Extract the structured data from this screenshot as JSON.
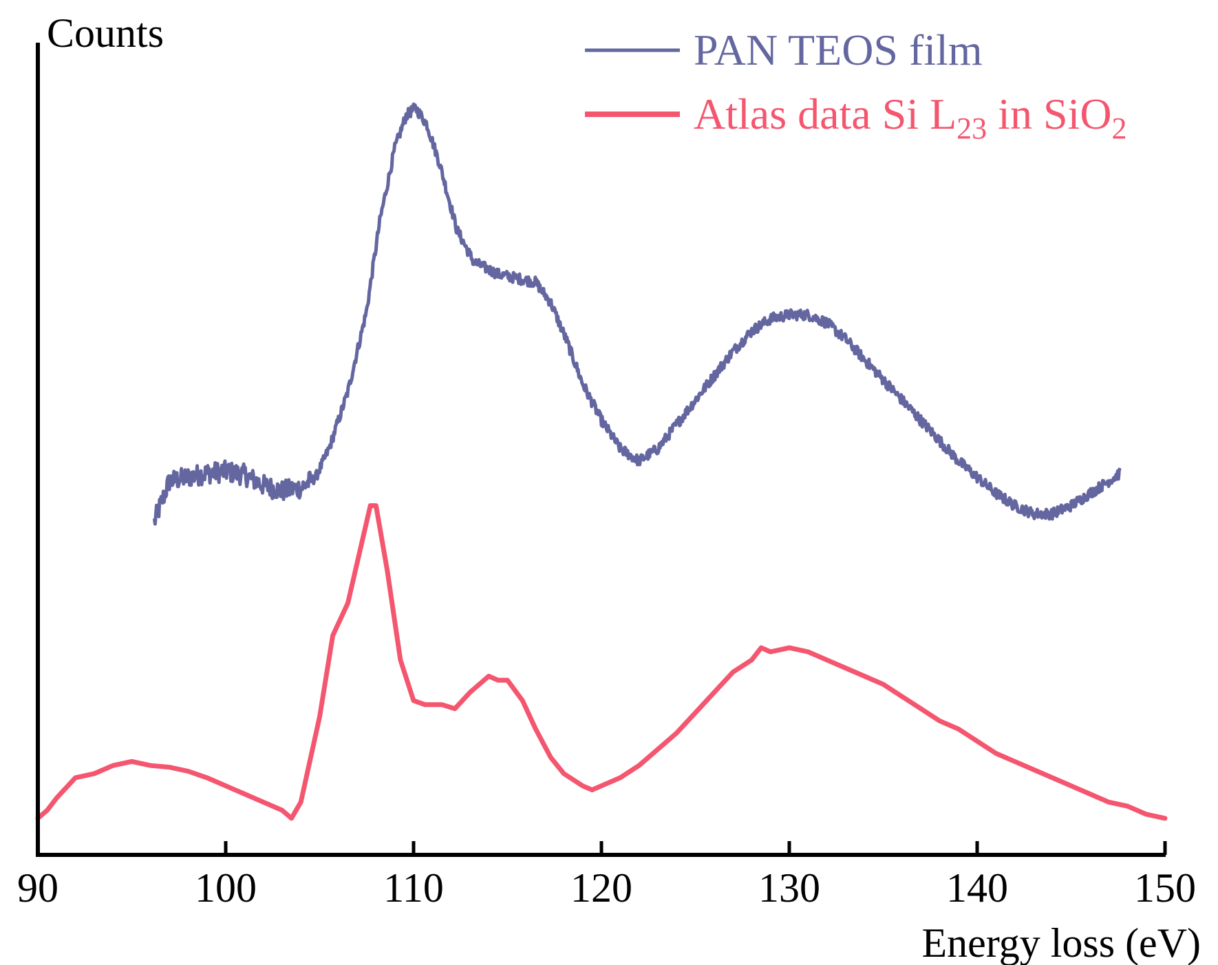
{
  "chart_data": {
    "type": "line",
    "title": "",
    "ylabel": "Counts",
    "xlabel": "Energy loss (eV)",
    "xlim": [
      90,
      150
    ],
    "ylim": [
      0,
      100
    ],
    "yticks_shown": false,
    "xticks": [
      90,
      100,
      110,
      120,
      130,
      140,
      150
    ],
    "xtick_labels": [
      "90",
      "100",
      "110",
      "120",
      "130",
      "140",
      "150"
    ],
    "legend_placement": "top-right",
    "series": [
      {
        "name": "PAN TEOS film",
        "color": "#6466a0",
        "noisy": true,
        "x": [
          96.2,
          97,
          98,
          99,
          100,
          101,
          102,
          103,
          104,
          104.8,
          105.5,
          106.5,
          107.5,
          108.2,
          109,
          109.6,
          110.1,
          110.7,
          111.4,
          112.3,
          113.2,
          114.5,
          115.5,
          116.5,
          117.3,
          118.2,
          119,
          120,
          121,
          122,
          123,
          124,
          125,
          126,
          127,
          128,
          129,
          130,
          131,
          132,
          133,
          134,
          135,
          136,
          137,
          138,
          139,
          140,
          141,
          142,
          143,
          144,
          145,
          146,
          147,
          147.6
        ],
        "y": [
          41,
          46,
          46.5,
          47,
          47.2,
          46.8,
          45.5,
          44.8,
          45.2,
          46.5,
          50,
          57,
          67,
          78,
          87,
          91,
          92,
          90,
          85,
          77,
          73,
          71.5,
          71,
          70.5,
          68,
          63,
          58,
          53.5,
          50,
          48.5,
          50,
          53,
          56,
          59,
          62,
          64.5,
          66,
          66.5,
          66.5,
          65.5,
          63.5,
          61,
          58.5,
          56,
          53.5,
          51,
          48.5,
          46.5,
          44.5,
          43,
          42,
          42,
          43,
          44.5,
          46,
          47
        ]
      },
      {
        "name": "Atlas data Si L23 in SiO2",
        "color": "#f4566f",
        "noisy": false,
        "x": [
          90,
          90.5,
          91,
          92,
          93,
          94,
          95,
          96,
          97,
          98,
          99,
          100,
          101,
          102,
          103,
          103.5,
          104,
          105,
          105.7,
          106.5,
          107.2,
          107.7,
          108,
          108.6,
          109.3,
          110,
          110.6,
          111.5,
          112.2,
          113,
          114,
          114.5,
          115,
          115.8,
          116.5,
          117.3,
          118,
          119,
          119.5,
          120,
          121,
          122,
          123,
          124,
          125,
          126,
          127,
          128,
          128.5,
          129,
          130,
          131,
          132,
          133,
          134,
          135,
          136,
          137,
          138,
          139,
          140,
          141,
          142,
          143,
          144,
          145,
          146,
          147,
          148,
          149,
          150
        ],
        "y": [
          4.5,
          5.5,
          7,
          9.5,
          10,
          11,
          11.5,
          11,
          10.8,
          10.3,
          9.5,
          8.5,
          7.5,
          6.5,
          5.5,
          4.5,
          6.5,
          17,
          27,
          31,
          38,
          43,
          43,
          35,
          24,
          19,
          18.5,
          18.5,
          18,
          20,
          22,
          21.5,
          21.5,
          19,
          15.5,
          12,
          10,
          8.5,
          8,
          8.5,
          9.5,
          11,
          13,
          15,
          17.5,
          20,
          22.5,
          24,
          25.5,
          25,
          25.5,
          25,
          24,
          23,
          22,
          21,
          19.5,
          18,
          16.5,
          15.5,
          14,
          12.5,
          11.5,
          10.5,
          9.5,
          8.5,
          7.5,
          6.5,
          6,
          5,
          4.5
        ]
      }
    ]
  },
  "legend": {
    "items": [
      {
        "label": "PAN TEOS film",
        "color": "#6466a0"
      },
      {
        "label_main": "Atlas data Si L",
        "label_sub": "23",
        "label_mid": " in SiO",
        "label_sub2": "2",
        "color": "#f4566f"
      }
    ]
  }
}
